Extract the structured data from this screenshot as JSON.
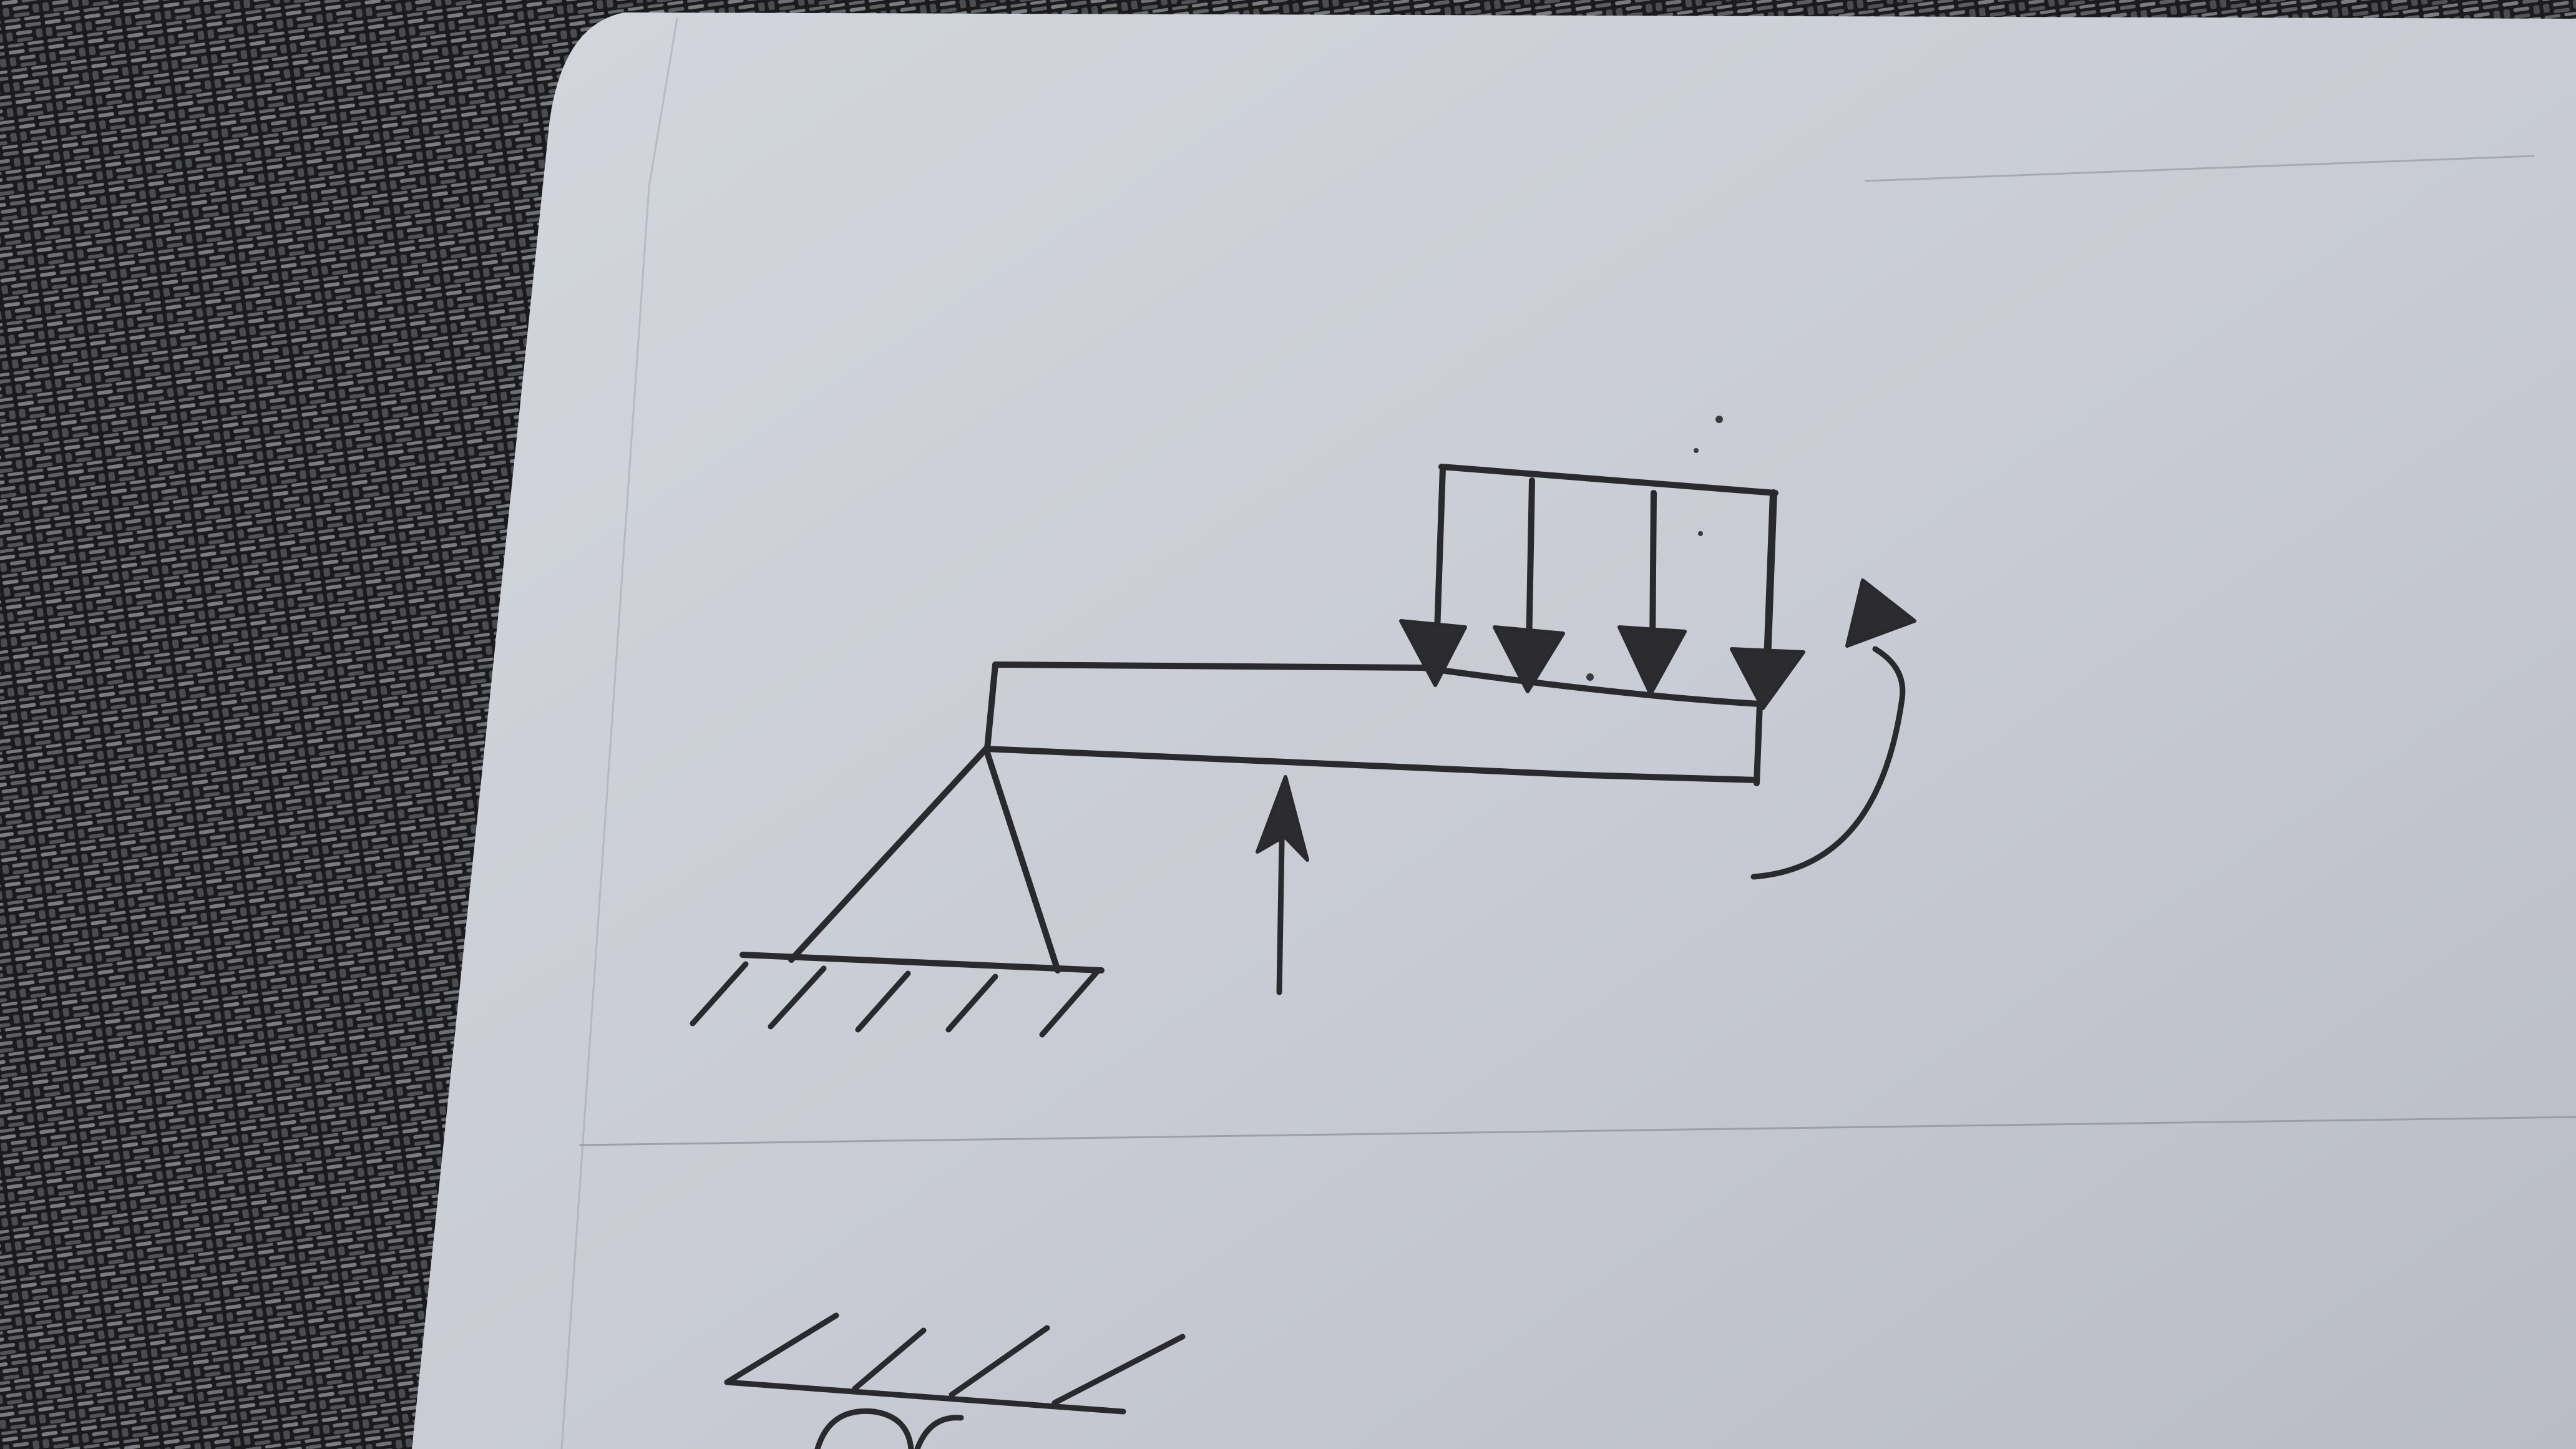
{
  "scene": {
    "background_name": "woven-placemat",
    "paper_name": "notebook-sheet",
    "ink_color": "#2a2a2e",
    "paper_color": "#c9ccd4",
    "mat_color": "#1d1d1f"
  },
  "diagram": {
    "subject": "beam-with-pin-support",
    "elements": [
      {
        "name": "beam"
      },
      {
        "name": "pin-support"
      },
      {
        "name": "ground-hatching"
      },
      {
        "name": "distributed-load",
        "arrow_count": 4
      },
      {
        "name": "upward-point-force"
      },
      {
        "name": "moment-arrow"
      }
    ],
    "lower_sketch": {
      "name": "partial-support-sketch"
    }
  }
}
